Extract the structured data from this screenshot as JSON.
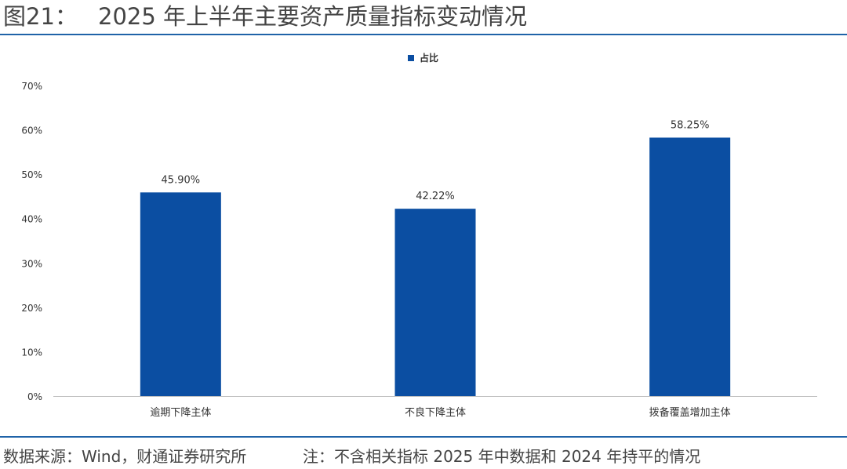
{
  "header": {
    "figure_label": "图21：",
    "title": "2025 年上半年主要资产质量指标变动情况"
  },
  "chart_data": {
    "type": "bar",
    "categories": [
      "逾期下降主体",
      "不良下降主体",
      "拨备覆盖增加主体"
    ],
    "series": [
      {
        "name": "占比",
        "values": [
          45.9,
          42.22,
          58.25
        ],
        "labels": [
          "45.90%",
          "42.22%",
          "58.25%"
        ]
      }
    ],
    "ylim": [
      0,
      70
    ],
    "yticks": [
      "0%",
      "10%",
      "20%",
      "30%",
      "40%",
      "50%",
      "60%",
      "70%"
    ],
    "grid": false,
    "legend": "top-center",
    "color": "#0b4ea2"
  },
  "footer": {
    "source": "数据来源：Wind，财通证券研究所",
    "note": "注：不含相关指标 2025 年中数据和 2024 年持平的情况"
  }
}
